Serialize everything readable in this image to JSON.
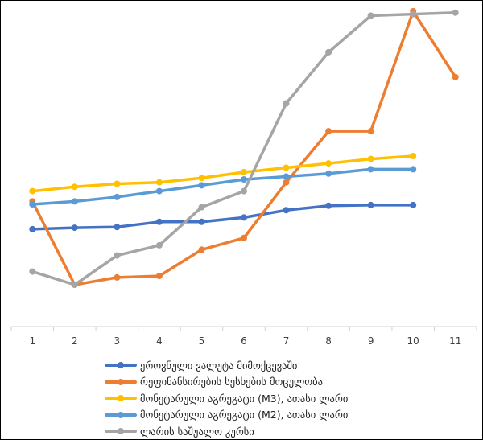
{
  "chart_data": {
    "type": "line",
    "title": "",
    "xlabel": "",
    "ylabel": "",
    "categories": [
      "1",
      "2",
      "3",
      "4",
      "5",
      "6",
      "7",
      "8",
      "9",
      "10",
      "11"
    ],
    "y_axis_visible": false,
    "grid": false,
    "legend_position": "bottom",
    "series": [
      {
        "name": "ეროვნული ვალუტა მიმოქცევაში",
        "color": "#4472C4",
        "values": [
          0.39,
          0.4,
          0.405,
          0.44,
          0.44,
          0.47,
          0.52,
          0.55,
          0.555,
          0.555,
          null
        ]
      },
      {
        "name": "რეფინანსირების სესხების მოცულობა",
        "color": "#ED7D31",
        "values": [
          0.58,
          0.01,
          0.06,
          0.07,
          0.25,
          0.33,
          0.71,
          1.06,
          1.06,
          1.88,
          1.43
        ]
      },
      {
        "name": "მონეტარული აგრეგატი (M3), ათასი ლარი",
        "color": "#FFC000",
        "values": [
          0.65,
          0.68,
          0.7,
          0.71,
          0.74,
          0.78,
          0.81,
          0.84,
          0.87,
          0.89,
          null
        ]
      },
      {
        "name": "მონეტარული აგრეგატი (M2), ათასი ლარი",
        "color": "#5B9BD5",
        "values": [
          0.56,
          0.58,
          0.61,
          0.65,
          0.69,
          0.73,
          0.75,
          0.77,
          0.8,
          0.8,
          null
        ]
      },
      {
        "name": "ლარის საშუალო კურსი",
        "color": "#A5A5A5",
        "values": [
          0.1,
          0.01,
          0.21,
          0.28,
          0.54,
          0.65,
          1.25,
          1.6,
          1.85,
          1.86,
          1.87
        ]
      }
    ]
  }
}
